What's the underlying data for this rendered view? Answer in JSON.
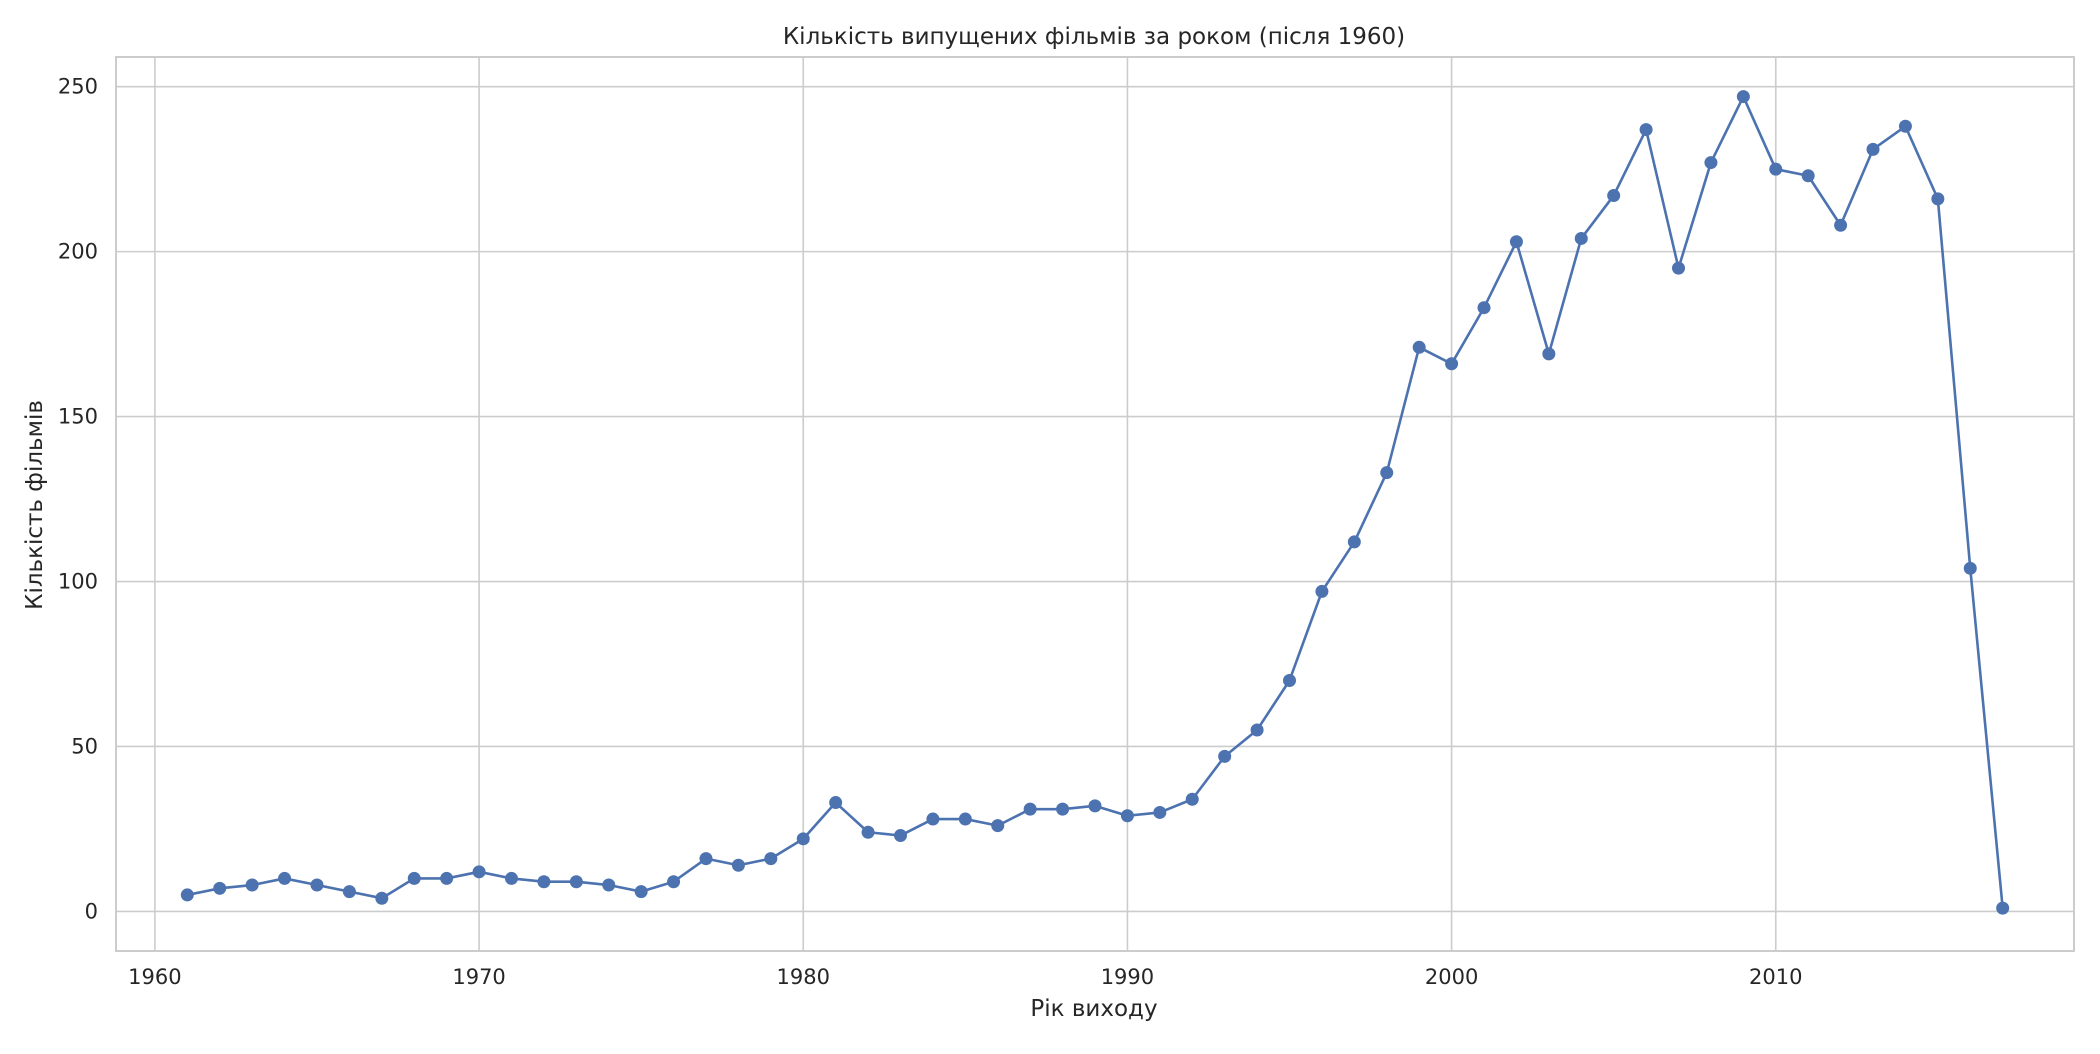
{
  "chart_data": {
    "type": "line",
    "title": "Кількість випущених фільмів за роком (після 1960)",
    "xlabel": "Рік виходу",
    "ylabel": "Кількість фільмів",
    "xlim": [
      1958.8,
      2019.2
    ],
    "ylim": [
      -12,
      259
    ],
    "xticks": [
      1960,
      1970,
      1980,
      1990,
      2000,
      2010
    ],
    "yticks": [
      0,
      50,
      100,
      150,
      200,
      250
    ],
    "grid": true,
    "legend": "none",
    "series": [
      {
        "color": "#4c72b0",
        "marker": "circle",
        "x": [
          1961,
          1962,
          1963,
          1964,
          1965,
          1966,
          1967,
          1968,
          1969,
          1970,
          1971,
          1972,
          1973,
          1974,
          1975,
          1976,
          1977,
          1978,
          1979,
          1980,
          1981,
          1982,
          1983,
          1984,
          1985,
          1986,
          1987,
          1988,
          1989,
          1990,
          1991,
          1992,
          1993,
          1994,
          1995,
          1996,
          1997,
          1998,
          1999,
          2000,
          2001,
          2002,
          2003,
          2004,
          2005,
          2006,
          2007,
          2008,
          2009,
          2010,
          2011,
          2012,
          2013,
          2014,
          2015,
          2016,
          2017
        ],
        "y": [
          5,
          7,
          8,
          10,
          8,
          6,
          4,
          10,
          10,
          12,
          10,
          9,
          9,
          8,
          6,
          9,
          16,
          14,
          16,
          22,
          33,
          24,
          23,
          28,
          28,
          26,
          31,
          31,
          32,
          29,
          30,
          34,
          47,
          55,
          70,
          97,
          112,
          133,
          171,
          166,
          183,
          203,
          169,
          204,
          217,
          237,
          195,
          227,
          247,
          225,
          223,
          208,
          231,
          238,
          216,
          104,
          1
        ]
      }
    ]
  },
  "colors": {
    "line": "#4c72b0",
    "grid": "#cccccc",
    "spine": "#cccccc",
    "text": "#262626",
    "background": "#ffffff"
  }
}
